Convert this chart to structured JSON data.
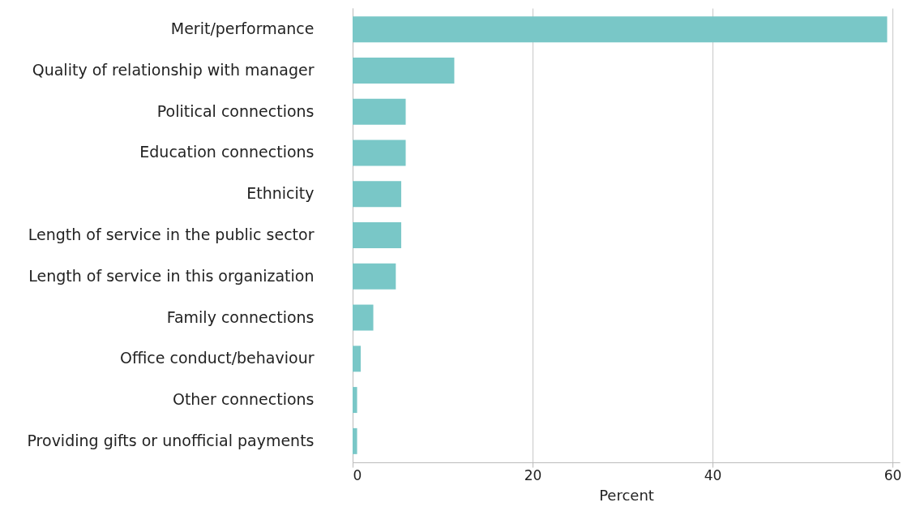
{
  "chart_data": {
    "type": "bar",
    "orientation": "horizontal",
    "xlabel": "Percent",
    "categories": [
      "Merit/performance",
      "Quality of relationship with manager",
      "Political connections",
      "Education connections",
      "Ethnicity",
      "Length of service in the public sector",
      "Length of service in this organization",
      "Family connections",
      "Office conduct/behaviour",
      "Other connections",
      "Providing gifts or unofficial payments"
    ],
    "values": [
      59.4,
      11.3,
      5.9,
      5.9,
      5.4,
      5.4,
      4.8,
      2.3,
      0.9,
      0.5,
      0.5
    ],
    "color": "#79c7c7",
    "xlim": [
      0,
      60.8
    ],
    "xticks": [
      0,
      20,
      40,
      60
    ],
    "grid": "x"
  }
}
